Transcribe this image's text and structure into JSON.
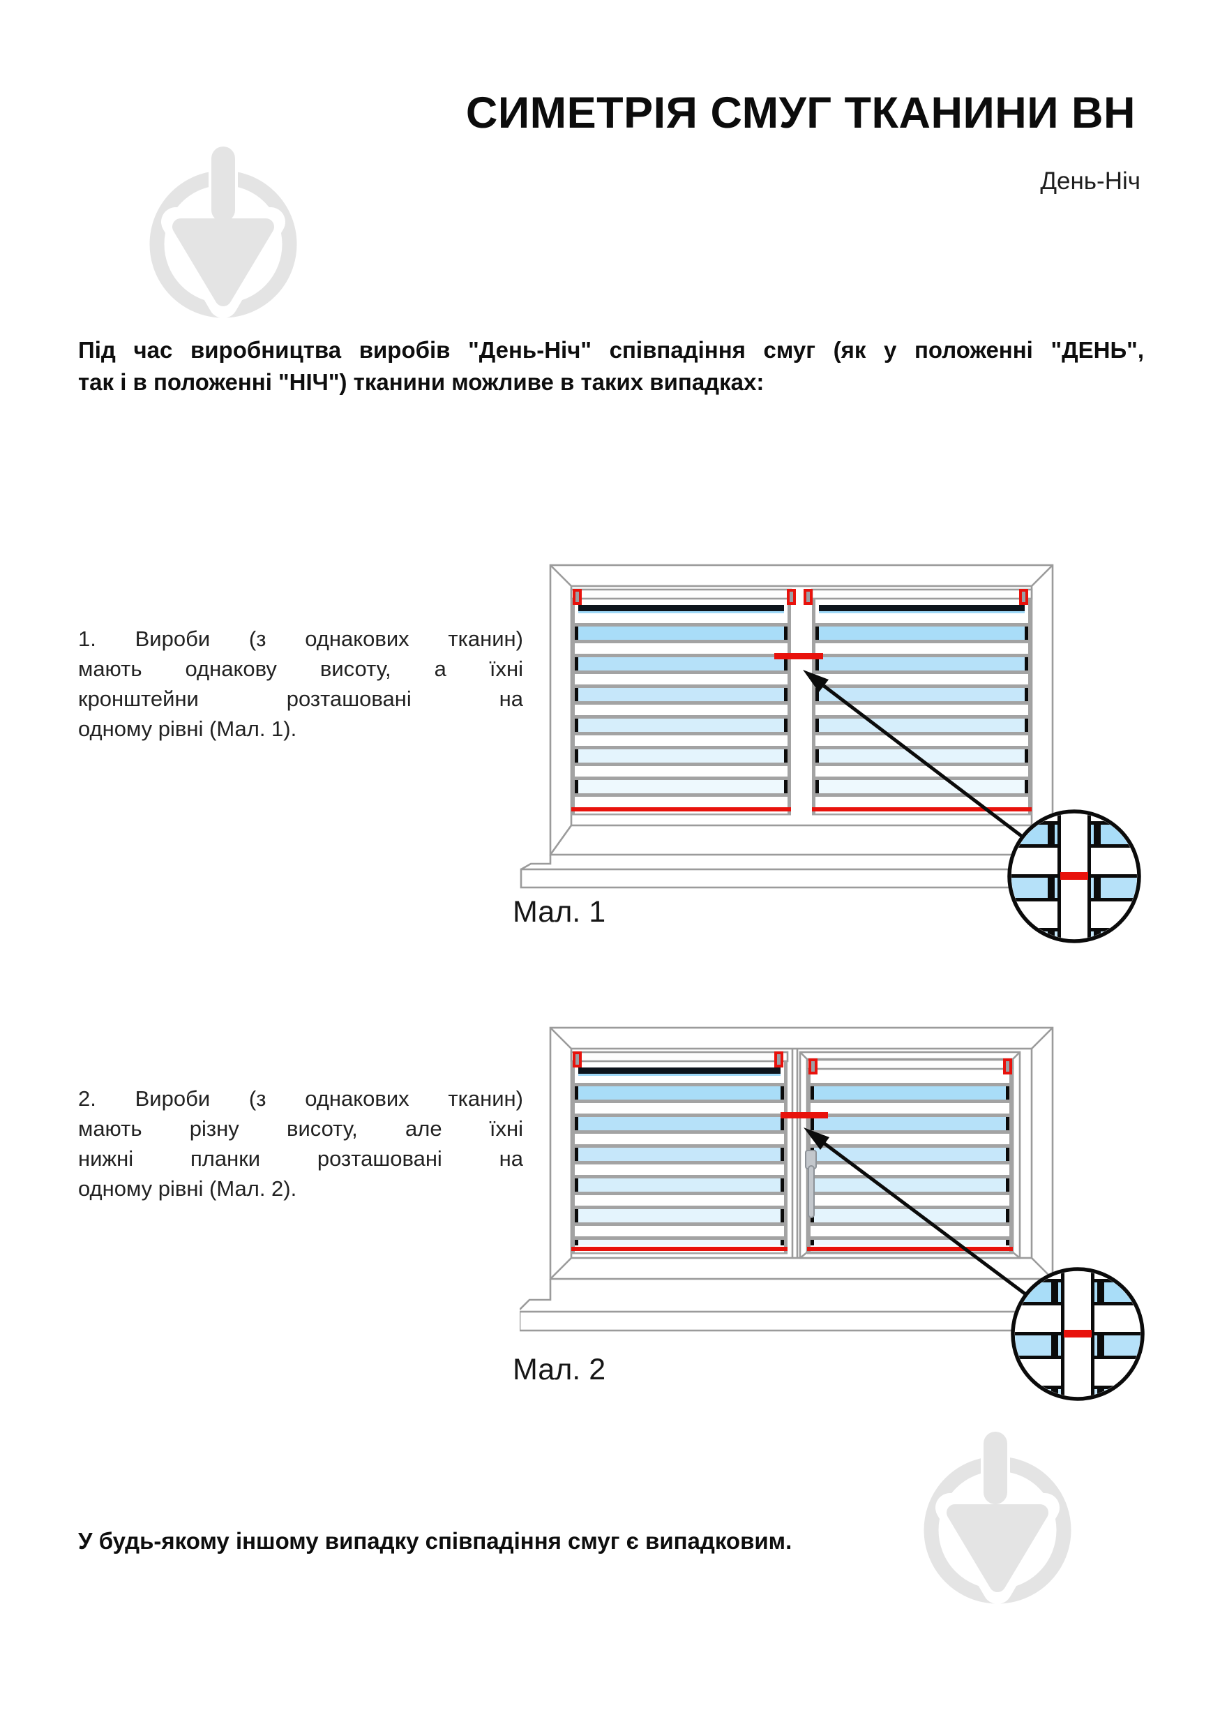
{
  "page": {
    "title": "СИМЕТРІЯ СМУГ ТКАНИНИ ВН",
    "subtitle": "День-Ніч"
  },
  "intro": {
    "line1": "Під час виробництва виробів \"День-Ніч\" співпадіння смуг (як у положенні \"ДЕНЬ\",",
    "line2": "так і в положенні \"НІЧ\") тканини можливе в таких випадках:"
  },
  "items": [
    {
      "lines": [
        "1. Вироби (з однакових тканин)",
        "мають однакову висоту, а їхні",
        "кронштейни розташовані на",
        "одному рівні (Мал. 1)."
      ]
    },
    {
      "lines": [
        "2. Вироби (з однакових тканин)",
        "мають різну висоту, але їхні",
        "нижні планки розташовані на",
        "одному рівні (Мал. 2)."
      ]
    }
  ],
  "figures": [
    {
      "caption": "Мал. 1"
    },
    {
      "caption": "Мал. 2"
    }
  ],
  "footer": {
    "text": "У будь-якому іншому випадку співпадіння смуг є випадковим."
  },
  "icons": {
    "watermark": "trowel-in-circle-logo",
    "magnifier": "magnified-fabric-detail",
    "pointer": "arrow-to-stripe-junction"
  },
  "colors": {
    "accent_red": "#e8120c",
    "navy_stripe": "#0d141c",
    "navy_underline": "#9fd8f7",
    "frame_gray": "#9b9b9b",
    "bar_gray": "#a3a3a3",
    "mark_black": "#0b0b0b",
    "watermark_gray": "#e4e4e4",
    "fabric_blues": [
      "#a9ddf8",
      "#b6e1f9",
      "#c6e7fa",
      "#d6eefb",
      "#e4f4fd",
      "#eef9fe"
    ]
  }
}
